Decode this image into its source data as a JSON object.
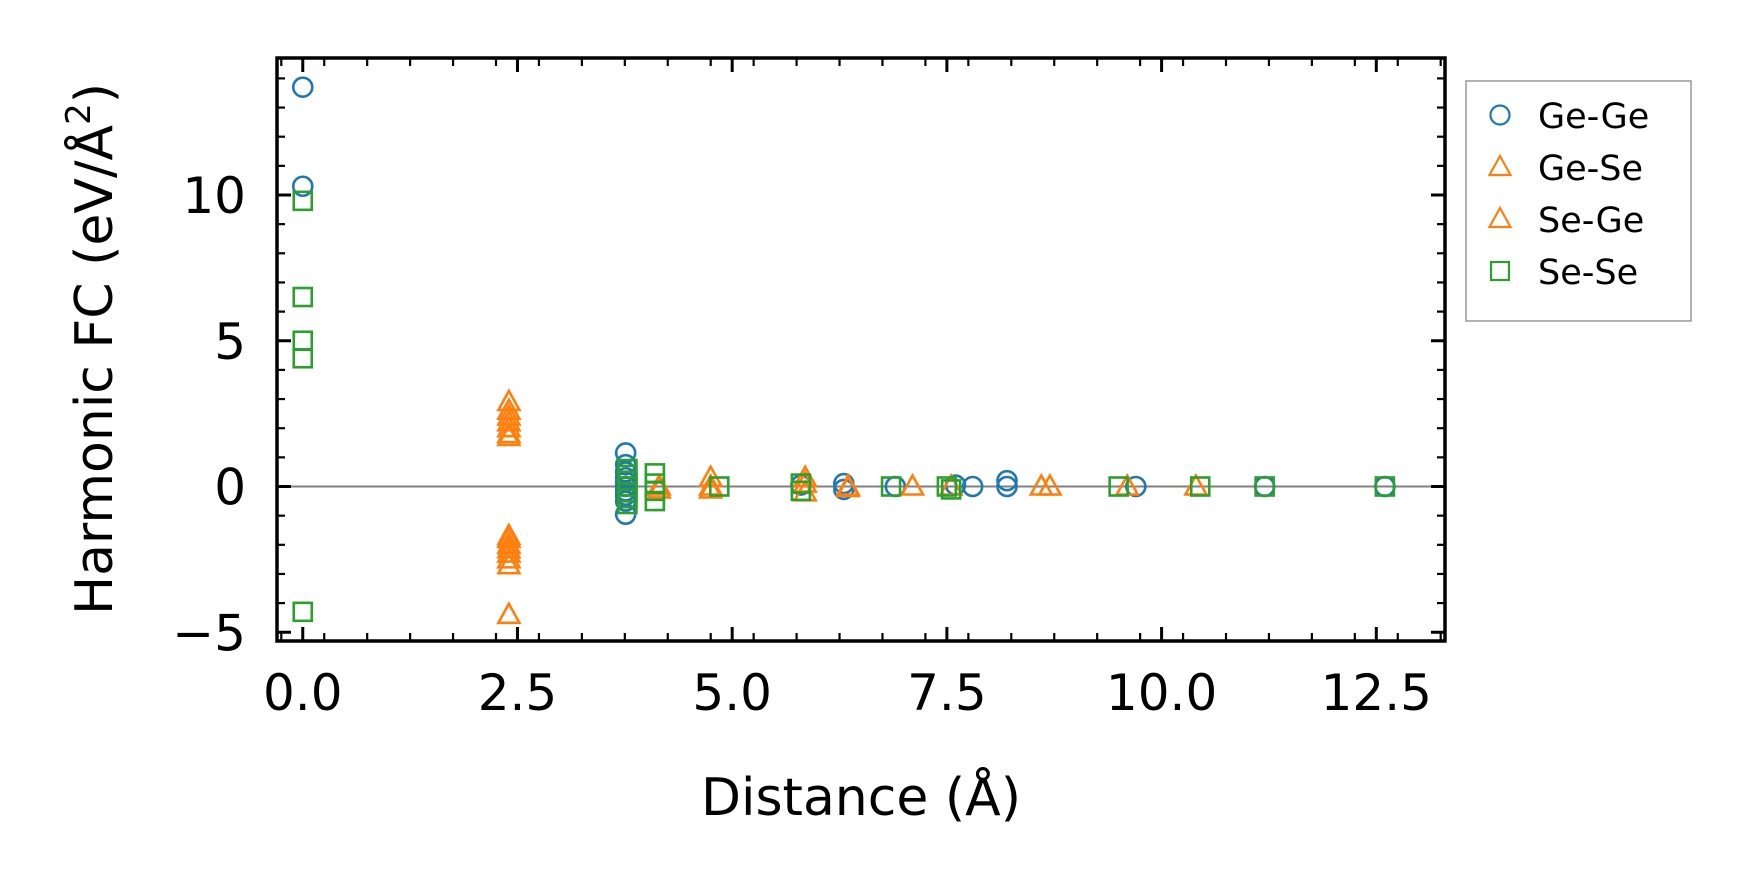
{
  "chart_data": {
    "type": "scatter",
    "xlabel": "Distance (Å)",
    "ylabel_main": "Harmonic FC (eV/Å",
    "ylabel_sup": "2",
    "ylabel_close": ")",
    "xlim": [
      -0.3,
      13.3
    ],
    "ylim": [
      -5.3,
      14.7
    ],
    "x_ticks": [
      0.0,
      2.5,
      5.0,
      7.5,
      10.0,
      12.5
    ],
    "x_tick_labels": [
      "0.0",
      "2.5",
      "5.0",
      "7.5",
      "10.0",
      "12.5"
    ],
    "y_ticks": [
      -5,
      0,
      5,
      10
    ],
    "y_tick_labels": [
      "−5",
      "0",
      "5",
      "10"
    ],
    "zero_line": true,
    "grid": false,
    "legend_position": "outside-right-top",
    "series": [
      {
        "name": "Ge-Ge",
        "marker": "circle",
        "color": "#1f77b4",
        "points": [
          [
            0,
            13.7
          ],
          [
            0,
            10.3
          ],
          [
            3.76,
            1.15
          ],
          [
            3.76,
            0.75
          ],
          [
            3.76,
            0.5
          ],
          [
            3.76,
            0.3
          ],
          [
            3.76,
            0.15
          ],
          [
            3.76,
            0.0
          ],
          [
            3.76,
            -0.15
          ],
          [
            3.76,
            -0.3
          ],
          [
            3.76,
            -0.5
          ],
          [
            3.76,
            -0.95
          ],
          [
            5.8,
            0.05
          ],
          [
            6.3,
            0.1
          ],
          [
            6.3,
            -0.1
          ],
          [
            6.9,
            0.0
          ],
          [
            7.6,
            0.05
          ],
          [
            7.8,
            0.0
          ],
          [
            8.2,
            0.2
          ],
          [
            8.2,
            0.0
          ],
          [
            9.7,
            0.0
          ],
          [
            11.2,
            0.0
          ],
          [
            12.6,
            0.0
          ]
        ]
      },
      {
        "name": "Ge-Se",
        "marker": "triangle",
        "color": "#ff7f0e",
        "points": [
          [
            2.4,
            2.9
          ],
          [
            2.4,
            2.4
          ],
          [
            2.4,
            2.0
          ],
          [
            2.4,
            1.7
          ],
          [
            2.4,
            -1.7
          ],
          [
            2.4,
            -2.0
          ],
          [
            2.4,
            -2.3
          ],
          [
            2.4,
            -2.7
          ],
          [
            2.4,
            -4.4
          ],
          [
            4.15,
            0.0
          ],
          [
            4.75,
            0.3
          ],
          [
            4.75,
            0.0
          ],
          [
            5.85,
            0.3
          ],
          [
            5.85,
            -0.2
          ],
          [
            6.35,
            0.0
          ],
          [
            7.1,
            0.0
          ],
          [
            8.6,
            0.0
          ],
          [
            10.4,
            0.0
          ]
        ]
      },
      {
        "name": "Se-Ge",
        "marker": "triangle",
        "color": "#ff7f0e",
        "points": [
          [
            2.4,
            2.6
          ],
          [
            2.4,
            2.2
          ],
          [
            2.4,
            1.8
          ],
          [
            2.4,
            -1.8
          ],
          [
            2.4,
            -2.15
          ],
          [
            2.4,
            -2.5
          ],
          [
            4.15,
            -0.1
          ],
          [
            4.75,
            -0.1
          ],
          [
            5.85,
            0.1
          ],
          [
            6.35,
            -0.05
          ],
          [
            7.55,
            0.0
          ],
          [
            8.7,
            0.0
          ],
          [
            9.6,
            0.0
          ]
        ]
      },
      {
        "name": "Se-Se",
        "marker": "square",
        "color": "#2ca02c",
        "points": [
          [
            0,
            9.8
          ],
          [
            0,
            6.5
          ],
          [
            0,
            5.0
          ],
          [
            0,
            4.4
          ],
          [
            0,
            -4.3
          ],
          [
            3.78,
            0.6
          ],
          [
            3.78,
            0.4
          ],
          [
            3.78,
            0.2
          ],
          [
            3.78,
            0.0
          ],
          [
            3.78,
            -0.2
          ],
          [
            3.78,
            -0.4
          ],
          [
            3.78,
            -0.6
          ],
          [
            4.1,
            0.45
          ],
          [
            4.1,
            0.1
          ],
          [
            4.1,
            -0.15
          ],
          [
            4.1,
            -0.5
          ],
          [
            4.85,
            0.0
          ],
          [
            5.8,
            0.1
          ],
          [
            5.8,
            -0.15
          ],
          [
            6.85,
            0.0
          ],
          [
            7.5,
            0.0
          ],
          [
            7.55,
            -0.1
          ],
          [
            9.5,
            0.0
          ],
          [
            10.45,
            0.0
          ],
          [
            11.2,
            0.0
          ],
          [
            12.6,
            0.0
          ]
        ]
      }
    ]
  }
}
